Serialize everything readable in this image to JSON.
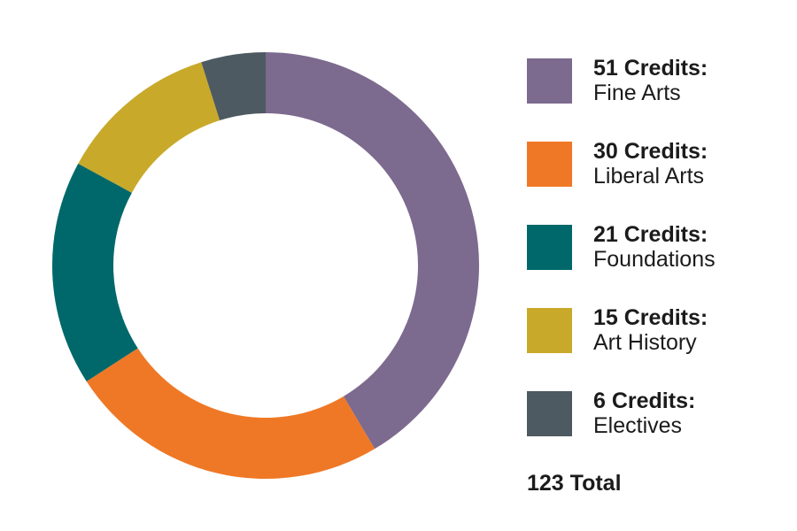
{
  "chart_data": {
    "type": "pie",
    "donut": true,
    "slices": [
      {
        "value": 51,
        "credits_label": "51 Credits:",
        "label": "Fine Arts",
        "color": "#7d6a8f"
      },
      {
        "value": 30,
        "credits_label": "30 Credits:",
        "label": "Liberal Arts",
        "color": "#ef7826"
      },
      {
        "value": 21,
        "credits_label": "21 Credits:",
        "label": "Foundations",
        "color": "#00686a"
      },
      {
        "value": 15,
        "credits_label": "15 Credits:",
        "label": "Art History",
        "color": "#c8a92a"
      },
      {
        "value": 6,
        "credits_label": "6 Credits:",
        "label": "Electives",
        "color": "#4e5a62"
      }
    ],
    "total_label": "123 Total",
    "legend_position": "right"
  }
}
